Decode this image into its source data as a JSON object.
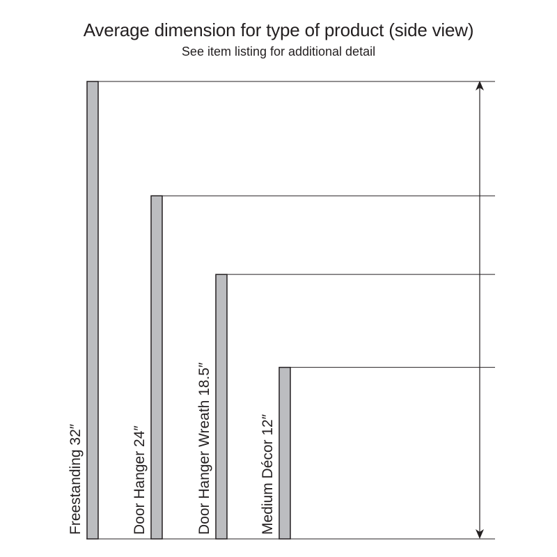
{
  "header": {
    "title": "Average dimension for type of product (side view)",
    "subtitle": "See item listing for additional detail"
  },
  "products": [
    {
      "label": "Freestanding 32″",
      "height_in": 32
    },
    {
      "label": "Door Hanger 24″",
      "height_in": 24
    },
    {
      "label": "Door Hanger Wreath 18.5″",
      "height_in": 18.5
    },
    {
      "label": "Medium Décor 12″",
      "height_in": 12
    }
  ],
  "colors": {
    "bar_fill": "#bcbdc0",
    "line": "#231f20"
  }
}
